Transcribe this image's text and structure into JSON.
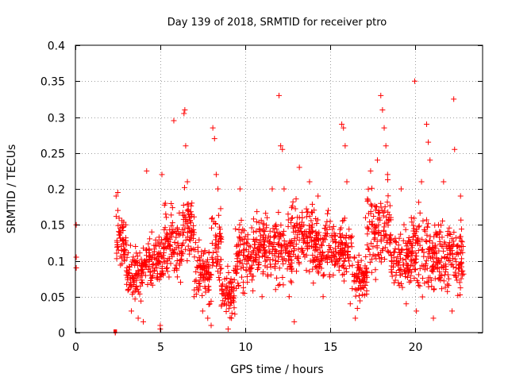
{
  "chart_data": {
    "type": "scatter",
    "title": "Day 139 of 2018, SRMTID for receiver ptro",
    "xlabel": "GPS time / hours",
    "ylabel": "SRMTID / TECUs",
    "xlim": [
      0,
      24
    ],
    "ylim": [
      0,
      0.4
    ],
    "x_ticks": [
      0,
      5,
      10,
      15,
      20
    ],
    "y_ticks": [
      0,
      0.05,
      0.1,
      0.15,
      0.2,
      0.25,
      0.3,
      0.35,
      0.4
    ],
    "x_tick_labels": [
      "0",
      "5",
      "10",
      "15",
      "20"
    ],
    "y_tick_labels": [
      "0",
      "0.05",
      "0.1",
      "0.15",
      "0.2",
      "0.25",
      "0.3",
      "0.35",
      "0.4"
    ],
    "grid": true,
    "marker": "+",
    "color": "#ff0000",
    "series": [
      {
        "name": "SRMTID",
        "points": [
          [
            0.05,
            0.105
          ],
          [
            0.05,
            0.09
          ],
          [
            0.05,
            0.15
          ],
          [
            2.35,
            0.0
          ],
          [
            2.35,
            0.0
          ],
          [
            2.4,
            0.19
          ],
          [
            2.5,
            0.195
          ],
          [
            2.5,
            0.17
          ],
          [
            2.6,
            0.14
          ],
          [
            2.7,
            0.12
          ],
          [
            2.8,
            0.13
          ],
          [
            2.9,
            0.1
          ],
          [
            3.0,
            0.08
          ],
          [
            3.1,
            0.06
          ],
          [
            3.3,
            0.03
          ],
          [
            3.5,
            0.1
          ],
          [
            3.7,
            0.02
          ],
          [
            3.9,
            0.07
          ],
          [
            4.0,
            0.015
          ],
          [
            4.2,
            0.225
          ],
          [
            4.5,
            0.14
          ],
          [
            4.8,
            0.09
          ],
          [
            5.0,
            0.01
          ],
          [
            5.0,
            0.005
          ],
          [
            5.1,
            0.22
          ],
          [
            5.3,
            0.18
          ],
          [
            5.6,
            0.12
          ],
          [
            5.8,
            0.295
          ],
          [
            6.0,
            0.1
          ],
          [
            6.2,
            0.07
          ],
          [
            6.4,
            0.305
          ],
          [
            6.45,
            0.31
          ],
          [
            6.5,
            0.26
          ],
          [
            6.6,
            0.21
          ],
          [
            6.8,
            0.14
          ],
          [
            7.0,
            0.05
          ],
          [
            7.2,
            0.1
          ],
          [
            7.5,
            0.03
          ],
          [
            7.8,
            0.02
          ],
          [
            8.0,
            0.01
          ],
          [
            8.1,
            0.285
          ],
          [
            8.2,
            0.27
          ],
          [
            8.3,
            0.22
          ],
          [
            8.4,
            0.2
          ],
          [
            8.6,
            0.13
          ],
          [
            8.8,
            0.04
          ],
          [
            9.0,
            0.005
          ],
          [
            9.2,
            0.02
          ],
          [
            9.5,
            0.12
          ],
          [
            9.7,
            0.2
          ],
          [
            9.9,
            0.07
          ],
          [
            10.2,
            0.1
          ],
          [
            10.5,
            0.14
          ],
          [
            10.8,
            0.09
          ],
          [
            11.0,
            0.05
          ],
          [
            11.3,
            0.16
          ],
          [
            11.6,
            0.2
          ],
          [
            11.8,
            0.06
          ],
          [
            12.0,
            0.33
          ],
          [
            12.1,
            0.26
          ],
          [
            12.2,
            0.255
          ],
          [
            12.3,
            0.2
          ],
          [
            12.6,
            0.05
          ],
          [
            12.9,
            0.015
          ],
          [
            13.2,
            0.23
          ],
          [
            13.5,
            0.14
          ],
          [
            13.8,
            0.21
          ],
          [
            14.0,
            0.1
          ],
          [
            14.3,
            0.19
          ],
          [
            14.6,
            0.05
          ],
          [
            14.9,
            0.17
          ],
          [
            15.2,
            0.08
          ],
          [
            15.5,
            0.12
          ],
          [
            15.7,
            0.29
          ],
          [
            15.8,
            0.285
          ],
          [
            15.9,
            0.26
          ],
          [
            16.0,
            0.21
          ],
          [
            16.2,
            0.04
          ],
          [
            16.5,
            0.02
          ],
          [
            16.8,
            0.09
          ],
          [
            17.1,
            0.16
          ],
          [
            17.4,
            0.225
          ],
          [
            17.6,
            0.13
          ],
          [
            17.8,
            0.24
          ],
          [
            18.0,
            0.33
          ],
          [
            18.1,
            0.31
          ],
          [
            18.2,
            0.285
          ],
          [
            18.3,
            0.26
          ],
          [
            18.4,
            0.22
          ],
          [
            18.6,
            0.13
          ],
          [
            18.9,
            0.08
          ],
          [
            19.2,
            0.2
          ],
          [
            19.5,
            0.04
          ],
          [
            19.8,
            0.16
          ],
          [
            20.0,
            0.35
          ],
          [
            20.1,
            0.03
          ],
          [
            20.4,
            0.21
          ],
          [
            20.7,
            0.29
          ],
          [
            20.8,
            0.265
          ],
          [
            20.9,
            0.24
          ],
          [
            21.1,
            0.02
          ],
          [
            21.4,
            0.15
          ],
          [
            21.7,
            0.21
          ],
          [
            22.0,
            0.1
          ],
          [
            22.2,
            0.03
          ],
          [
            22.3,
            0.325
          ],
          [
            22.35,
            0.255
          ],
          [
            22.5,
            0.12
          ],
          [
            22.7,
            0.19
          ],
          [
            22.8,
            0.08
          ]
        ],
        "bands": [
          [
            2.4,
            3.0,
            0.08,
            0.17
          ],
          [
            3.0,
            4.0,
            0.03,
            0.13
          ],
          [
            4.0,
            5.2,
            0.04,
            0.16
          ],
          [
            5.2,
            6.3,
            0.06,
            0.19
          ],
          [
            6.3,
            7.0,
            0.07,
            0.21
          ],
          [
            7.0,
            8.0,
            0.03,
            0.14
          ],
          [
            8.0,
            8.6,
            0.05,
            0.19
          ],
          [
            8.6,
            9.4,
            0.01,
            0.1
          ],
          [
            9.4,
            10.5,
            0.04,
            0.17
          ],
          [
            10.5,
            11.8,
            0.06,
            0.18
          ],
          [
            11.8,
            12.8,
            0.05,
            0.19
          ],
          [
            12.8,
            14.0,
            0.07,
            0.2
          ],
          [
            14.0,
            15.3,
            0.06,
            0.18
          ],
          [
            15.3,
            16.3,
            0.06,
            0.17
          ],
          [
            16.3,
            17.2,
            0.03,
            0.12
          ],
          [
            17.2,
            18.6,
            0.06,
            0.22
          ],
          [
            18.6,
            19.8,
            0.05,
            0.16
          ],
          [
            19.8,
            21.2,
            0.03,
            0.19
          ],
          [
            21.2,
            22.9,
            0.04,
            0.17
          ]
        ],
        "band_density_per_hour": 85
      }
    ]
  }
}
